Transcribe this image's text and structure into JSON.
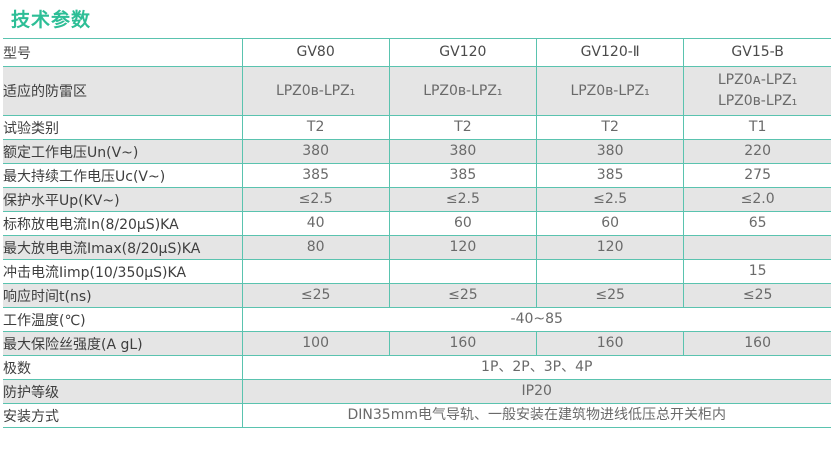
{
  "page_title": "技术参数",
  "colors": {
    "accent_border": "#5ac3af",
    "title_green": "#2dbe96",
    "row_shade": "#e5e5e5",
    "label_text": "#3e3e3e",
    "value_text": "#6a6a6a"
  },
  "table": {
    "header": {
      "label": "型号",
      "columns": [
        "GV80",
        "GV120",
        "GV120-Ⅱ",
        "GV15-B"
      ]
    },
    "rows": [
      {
        "label": "适应的防雷区",
        "cells": [
          "LPZ0ʙ-LPZ₁",
          "LPZ0ʙ-LPZ₁",
          "LPZ0ʙ-LPZ₁",
          "LPZ0ᴀ-LPZ₁\nLPZ0ʙ-LPZ₁"
        ]
      },
      {
        "label": "试验类别",
        "cells": [
          "T2",
          "T2",
          "T2",
          "T1"
        ]
      },
      {
        "label": "额定工作电压Un(V~)",
        "cells": [
          "380",
          "380",
          "380",
          "220"
        ]
      },
      {
        "label": "最大持续工作电压Uc(V~)",
        "cells": [
          "385",
          "385",
          "385",
          "275"
        ]
      },
      {
        "label": "保护水平Up(KV~)",
        "cells": [
          "≤2.5",
          "≤2.5",
          "≤2.5",
          "≤2.0"
        ]
      },
      {
        "label": "标称放电电流In(8/20μS)KA",
        "cells": [
          "40",
          "60",
          "60",
          "65"
        ]
      },
      {
        "label": "最大放电电流Imax(8/20μS)KA",
        "cells": [
          "80",
          "120",
          "120",
          ""
        ]
      },
      {
        "label": "冲击电流Iimp(10/350μS)KA",
        "cells": [
          "",
          "",
          "",
          "15"
        ]
      },
      {
        "label": "响应时间t(ns)",
        "cells": [
          "≤25",
          "≤25",
          "≤25",
          "≤25"
        ]
      },
      {
        "label": "工作温度(℃)",
        "span": "-40~85"
      },
      {
        "label": "最大保险丝强度(A gL)",
        "cells": [
          "100",
          "160",
          "160",
          "160"
        ]
      },
      {
        "label": "极数",
        "span": "1P、2P、3P、4P"
      },
      {
        "label": "防护等级",
        "span": "IP20"
      },
      {
        "label": "安装方式",
        "span": "DIN35mm电气导轨、一般安装在建筑物进线低压总开关柜内"
      }
    ]
  }
}
